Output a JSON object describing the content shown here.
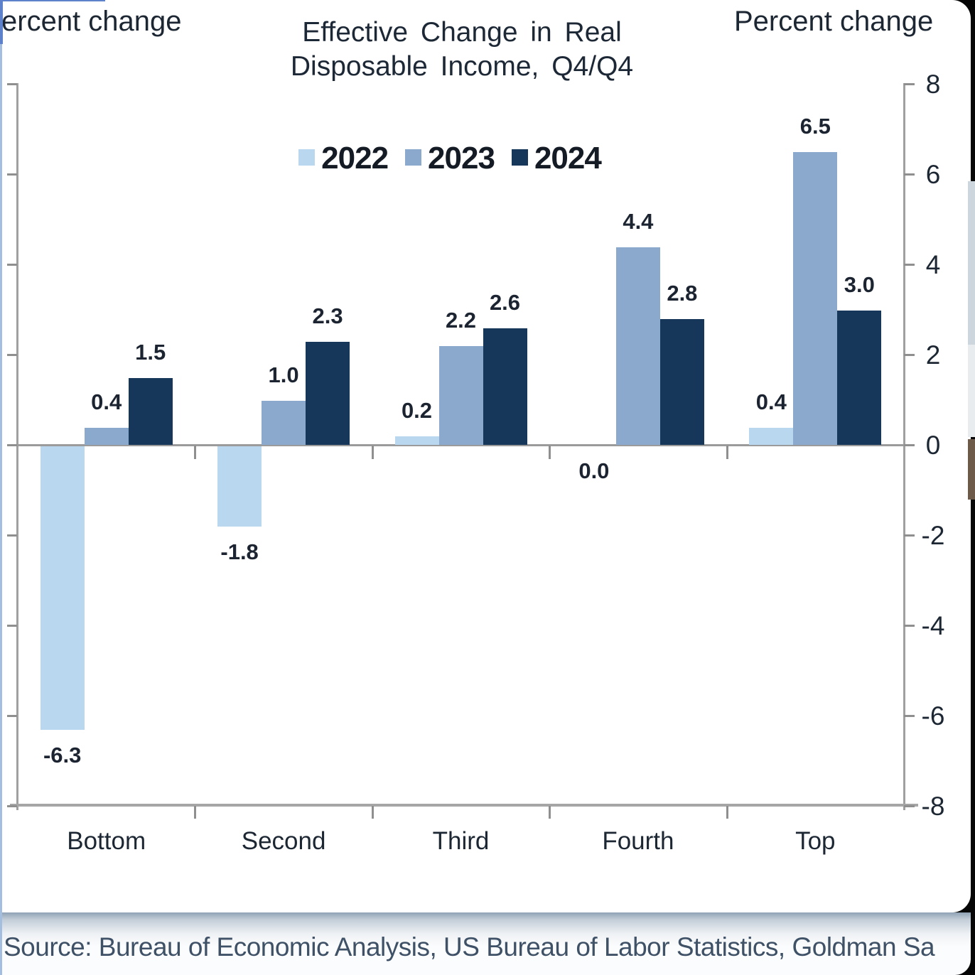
{
  "page": {
    "left_axis_label": "ercent change",
    "right_axis_label": "Percent change",
    "source_text": "Source: Bureau of Economic Analysis, US Bureau of Labor Statistics, Goldman Sa"
  },
  "chart_data": {
    "type": "bar",
    "title": "Effective Change in Real Disposable Income, Q4/Q4",
    "title_lines": [
      "Effective Change in Real",
      "Disposable Income, Q4/Q4"
    ],
    "categories": [
      "Bottom",
      "Second",
      "Third",
      "Fourth",
      "Top"
    ],
    "series": [
      {
        "name": "2022",
        "color": "#b9d7ef",
        "values": [
          -6.3,
          -1.8,
          0.2,
          0.0,
          0.4
        ]
      },
      {
        "name": "2023",
        "color": "#8ba9cd",
        "values": [
          0.4,
          1.0,
          2.2,
          4.4,
          6.5
        ]
      },
      {
        "name": "2024",
        "color": "#16375a",
        "values": [
          1.5,
          2.3,
          2.6,
          2.8,
          3.0
        ]
      }
    ],
    "ylim": [
      -8,
      8
    ],
    "ytick_step": 2,
    "right_axis_tick_labels": [
      "8",
      "6",
      "4",
      "2",
      "0",
      "-2",
      "-4",
      "-6",
      "-8"
    ],
    "ylabel_left_visible": "ercent change",
    "ylabel_right": "Percent change",
    "legend_position": "top-center",
    "grid": false,
    "value_labels_shown": true
  }
}
